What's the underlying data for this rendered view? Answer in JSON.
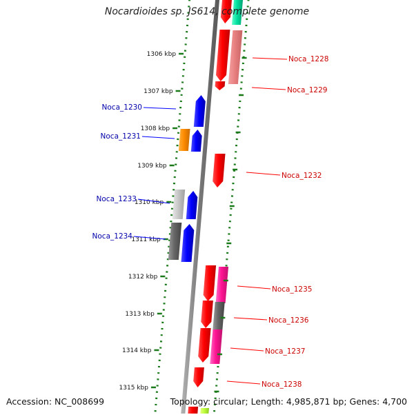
{
  "title": "Nocardioides sp. JS614, complete genome",
  "accession": "Accession: NC_008699",
  "summary": "Topology: circular; Length: 4,985,871 bp; Genes: 4,700",
  "colors": {
    "forward": "#ff0000",
    "reverse": "#0000ff",
    "forward_label": "#cc0000",
    "reverse_label": "#0000aa",
    "ruler": "#1a7a1a",
    "backbone": "#888888"
  },
  "ticks": [
    {
      "label": "1306 kbp"
    },
    {
      "label": "1307 kbp"
    },
    {
      "label": "1308 kbp"
    },
    {
      "label": "1309 kbp"
    },
    {
      "label": "1310 kbp"
    },
    {
      "label": "1311 kbp"
    },
    {
      "label": "1312 kbp"
    },
    {
      "label": "1313 kbp"
    },
    {
      "label": "1314 kbp"
    },
    {
      "label": "1315 kbp"
    }
  ],
  "genes": [
    {
      "name": "Noca_1228",
      "strand": "+"
    },
    {
      "name": "Noca_1229",
      "strand": "+"
    },
    {
      "name": "Noca_1230",
      "strand": "-"
    },
    {
      "name": "Noca_1231",
      "strand": "-"
    },
    {
      "name": "Noca_1232",
      "strand": "+"
    },
    {
      "name": "Noca_1233",
      "strand": "-"
    },
    {
      "name": "Noca_1234",
      "strand": "-"
    },
    {
      "name": "Noca_1235",
      "strand": "+"
    },
    {
      "name": "Noca_1236",
      "strand": "+"
    },
    {
      "name": "Noca_1237",
      "strand": "+"
    },
    {
      "name": "Noca_1238",
      "strand": "+"
    }
  ]
}
